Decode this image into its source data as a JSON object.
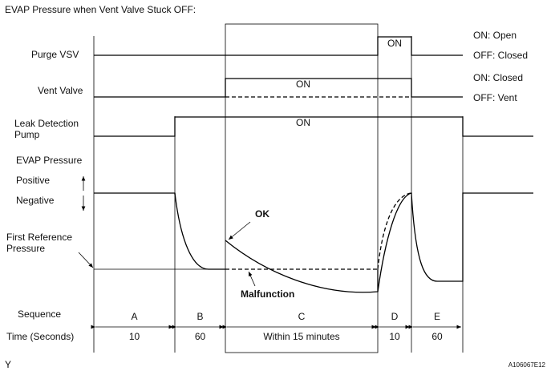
{
  "title": "EVAP Pressure when Vent Valve Stuck OFF:",
  "signals": {
    "purge_vsv": "Purge VSV",
    "vent_valve": "Vent Valve",
    "pump": [
      "Leak Detection",
      "Pump"
    ],
    "evap_pressure": "EVAP Pressure",
    "positive": "Positive",
    "negative": "Negative",
    "first_reference": [
      "First Reference",
      "Pressure"
    ]
  },
  "states": {
    "purge_on": "ON: Open",
    "purge_off": "OFF: Closed",
    "vent_on": "ON: Closed",
    "vent_off": "OFF: Vent"
  },
  "on_labels": [
    "ON",
    "ON",
    "ON"
  ],
  "annotations": {
    "ok": "OK",
    "malfunction": "Malfunction"
  },
  "sequence_label": "Sequence",
  "time_label": "Time (Seconds)",
  "sequences": [
    "A",
    "B",
    "C",
    "D",
    "E"
  ],
  "times": [
    "10",
    "60",
    "Within 15 minutes",
    "10",
    "60"
  ],
  "footer": {
    "left": "Y",
    "right": "A106067E12"
  }
}
